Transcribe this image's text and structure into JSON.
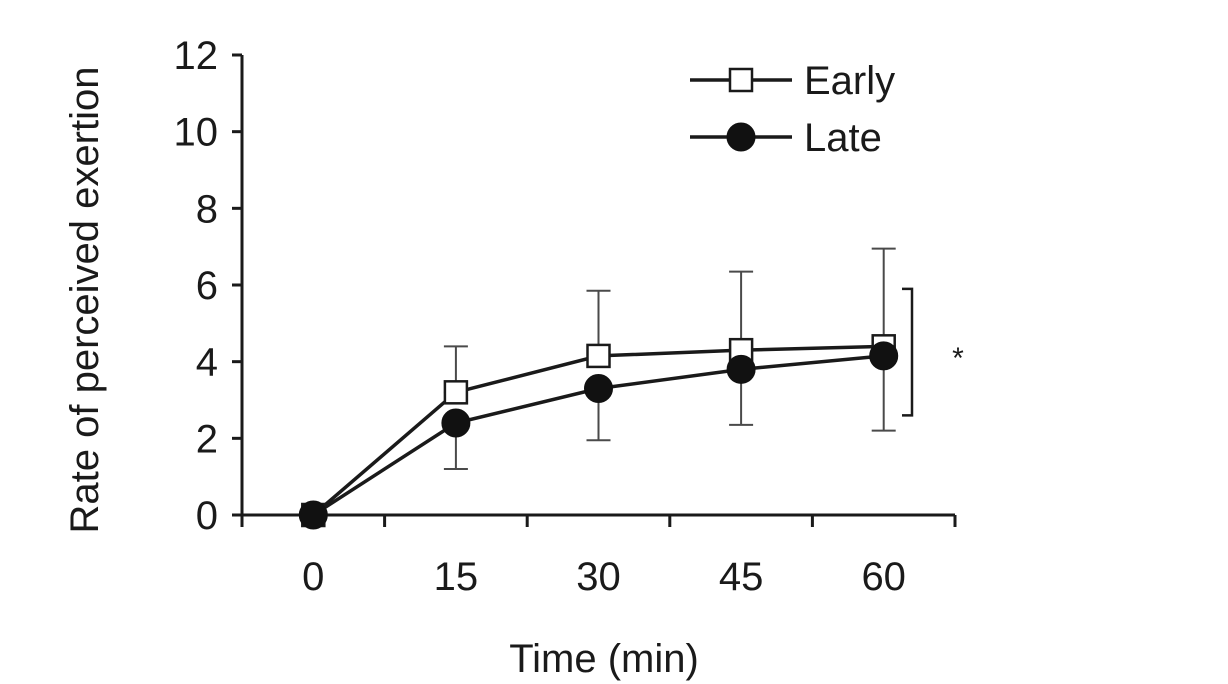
{
  "chart_data": {
    "type": "line",
    "title": "",
    "xlabel": "Time (min)",
    "ylabel": "Rate of perceived exertion",
    "x": [
      0,
      15,
      30,
      45,
      60
    ],
    "x_tick_labels": [
      "0",
      "15",
      "30",
      "45",
      "60"
    ],
    "y_ticks": [
      0,
      2,
      4,
      6,
      8,
      10,
      12
    ],
    "y_tick_labels": [
      "0",
      "2",
      "4",
      "6",
      "8",
      "10",
      "12"
    ],
    "xlim": [
      -7.5,
      67.5
    ],
    "ylim": [
      0,
      12
    ],
    "grid": false,
    "legend_position": "top-right",
    "series": [
      {
        "name": "Early",
        "marker": "open-square",
        "values": [
          0,
          3.2,
          4.15,
          4.3,
          4.4
        ],
        "error_upper": [
          0,
          4.4,
          5.85,
          6.35,
          6.95
        ],
        "error_lower": [
          0,
          3.2,
          4.15,
          4.3,
          4.4
        ]
      },
      {
        "name": "Late",
        "marker": "filled-circle",
        "values": [
          0,
          2.4,
          3.3,
          3.8,
          4.15
        ],
        "error_upper": [
          0,
          2.4,
          3.3,
          3.8,
          4.15
        ],
        "error_lower": [
          0,
          1.2,
          1.95,
          2.35,
          2.2
        ]
      }
    ],
    "annotations": [
      {
        "text": "*",
        "bracket_range": [
          2.6,
          5.9
        ]
      }
    ],
    "colors": {
      "line": "#1a1a1a",
      "error": "#4a4a4a",
      "early_fill": "#ffffff",
      "late_fill": "#111111"
    }
  }
}
